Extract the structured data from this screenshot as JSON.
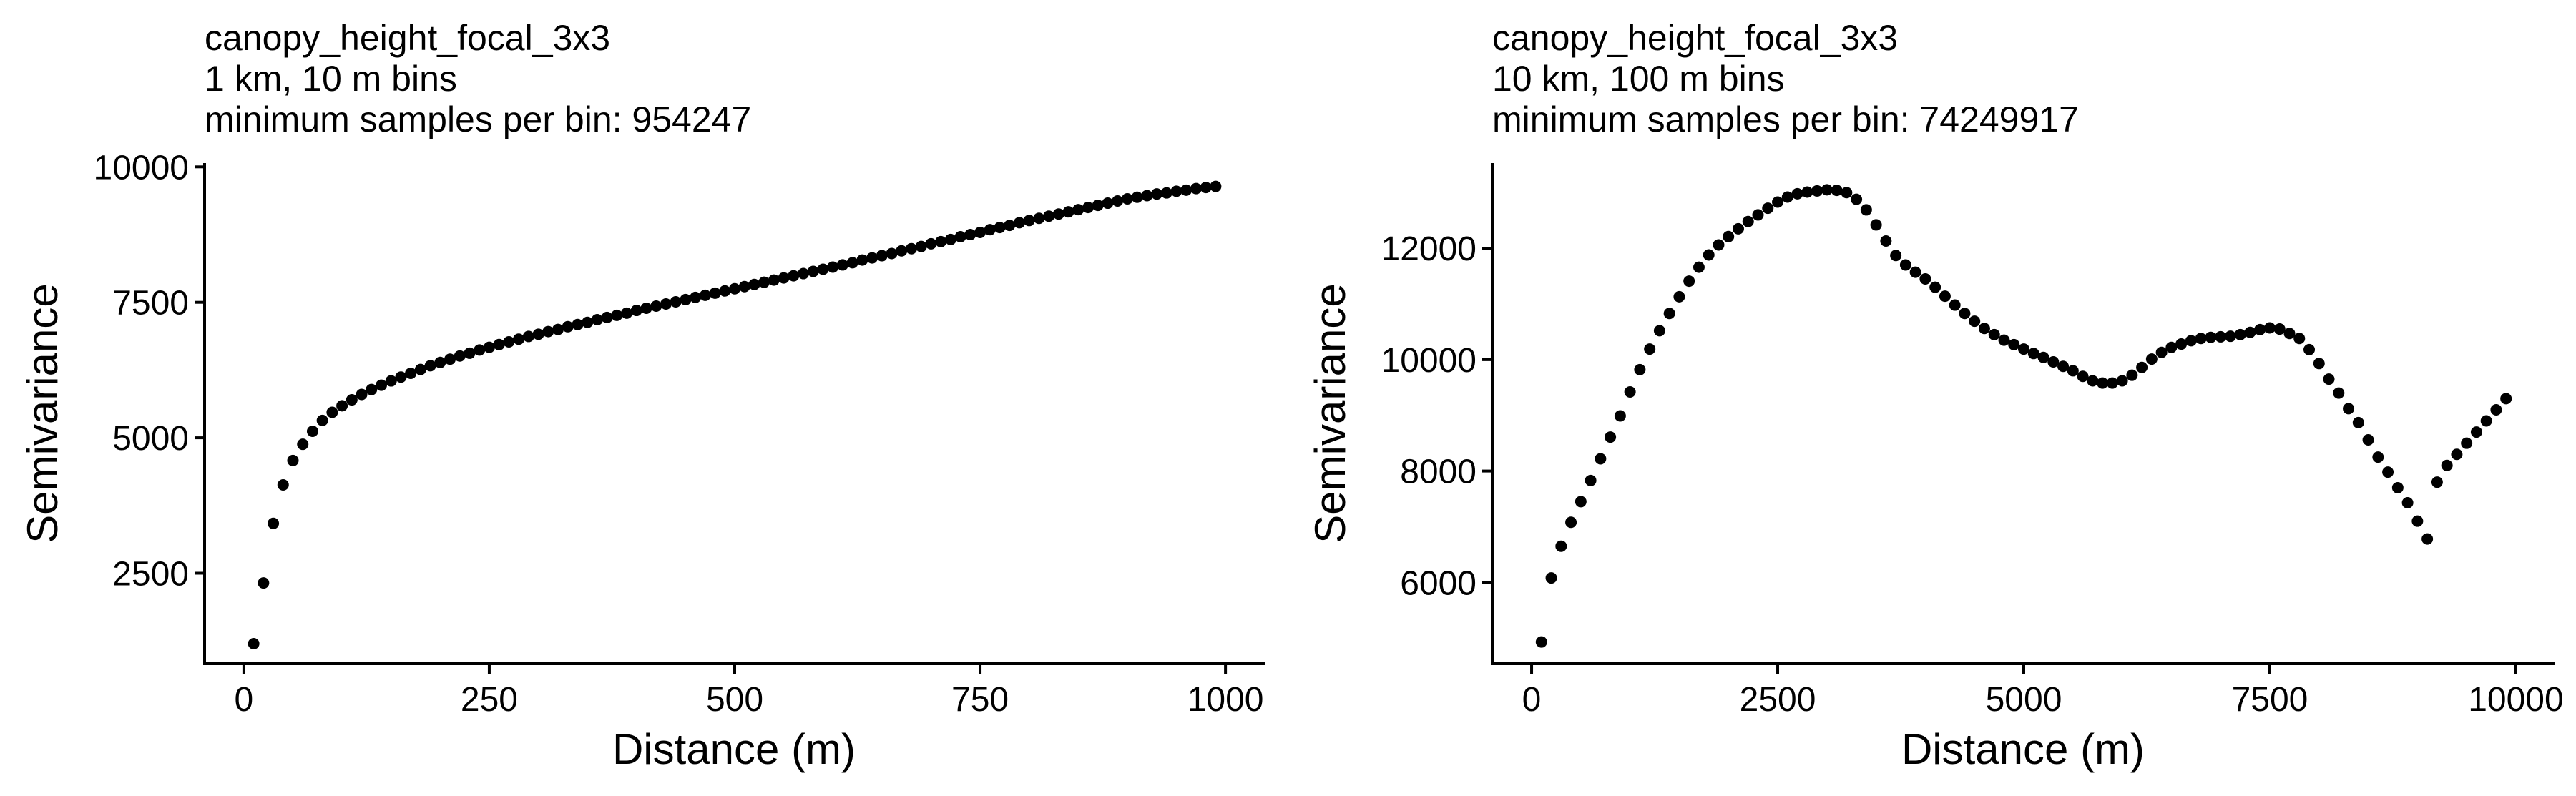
{
  "chart_data": [
    {
      "type": "scatter",
      "title_lines": [
        "canopy_height_focal_3x3",
        "1 km, 10 m bins",
        "minimum samples per bin: 954247"
      ],
      "xlabel": "Distance (m)",
      "ylabel": "Semivariance",
      "xlim": [
        -40,
        1040
      ],
      "ylim": [
        830,
        10070
      ],
      "x_ticks": [
        0,
        250,
        500,
        750,
        1000
      ],
      "x_tick_labels": [
        "0",
        "250",
        "500",
        "750",
        "1000"
      ],
      "y_ticks": [
        2500,
        5000,
        7500,
        10000
      ],
      "y_tick_labels": [
        "2500",
        "5000",
        "7500",
        "10000"
      ],
      "grid": false,
      "series": [
        {
          "name": "semivariance",
          "x": [
            10,
            20,
            30,
            40,
            50,
            60,
            70,
            80,
            90,
            100,
            110,
            120,
            130,
            140,
            150,
            160,
            170,
            180,
            190,
            200,
            210,
            220,
            230,
            240,
            250,
            260,
            270,
            280,
            290,
            300,
            310,
            320,
            330,
            340,
            350,
            360,
            370,
            380,
            390,
            400,
            410,
            420,
            430,
            440,
            450,
            460,
            470,
            480,
            490,
            500,
            510,
            520,
            530,
            540,
            550,
            560,
            570,
            580,
            590,
            600,
            610,
            620,
            630,
            640,
            650,
            660,
            670,
            680,
            690,
            700,
            710,
            720,
            730,
            740,
            750,
            760,
            770,
            780,
            790,
            800,
            810,
            820,
            830,
            840,
            850,
            860,
            870,
            880,
            890,
            900,
            910,
            920,
            930,
            940,
            950,
            960,
            970,
            980,
            990
          ],
          "y": [
            1200,
            2320,
            3420,
            4130,
            4580,
            4880,
            5120,
            5320,
            5470,
            5590,
            5700,
            5800,
            5890,
            5970,
            6050,
            6120,
            6190,
            6260,
            6330,
            6390,
            6450,
            6510,
            6560,
            6620,
            6670,
            6720,
            6770,
            6820,
            6870,
            6910,
            6960,
            7000,
            7050,
            7090,
            7130,
            7180,
            7220,
            7260,
            7300,
            7350,
            7390,
            7430,
            7470,
            7510,
            7550,
            7590,
            7630,
            7670,
            7710,
            7750,
            7790,
            7830,
            7870,
            7910,
            7950,
            7990,
            8030,
            8070,
            8110,
            8150,
            8190,
            8230,
            8280,
            8320,
            8360,
            8400,
            8450,
            8490,
            8530,
            8580,
            8620,
            8660,
            8710,
            8750,
            8790,
            8840,
            8880,
            8920,
            8970,
            9010,
            9050,
            9090,
            9130,
            9170,
            9210,
            9250,
            9290,
            9330,
            9370,
            9410,
            9440,
            9470,
            9500,
            9520,
            9550,
            9570,
            9600,
            9620,
            9640
          ]
        }
      ]
    },
    {
      "type": "scatter",
      "title_lines": [
        "canopy_height_focal_3x3",
        "10 km, 100 m bins",
        "minimum samples per bin: 74249917"
      ],
      "xlabel": "Distance (m)",
      "ylabel": "Semivariance",
      "xlim": [
        -400,
        10400
      ],
      "ylim": [
        4540,
        13530
      ],
      "x_ticks": [
        0,
        2500,
        5000,
        7500,
        10000
      ],
      "x_tick_labels": [
        "0",
        "2500",
        "5000",
        "7500",
        "10000"
      ],
      "y_ticks": [
        6000,
        8000,
        10000,
        12000
      ],
      "y_tick_labels": [
        "6000",
        "8000",
        "10000",
        "12000"
      ],
      "grid": false,
      "series": [
        {
          "name": "semivariance",
          "x": [
            100,
            200,
            300,
            400,
            500,
            600,
            700,
            800,
            900,
            1000,
            1100,
            1200,
            1300,
            1400,
            1500,
            1600,
            1700,
            1800,
            1900,
            2000,
            2100,
            2200,
            2300,
            2400,
            2500,
            2600,
            2700,
            2800,
            2900,
            3000,
            3100,
            3200,
            3300,
            3400,
            3500,
            3600,
            3700,
            3800,
            3900,
            4000,
            4100,
            4200,
            4300,
            4400,
            4500,
            4600,
            4700,
            4800,
            4900,
            5000,
            5100,
            5200,
            5300,
            5400,
            5500,
            5600,
            5700,
            5800,
            5900,
            6000,
            6100,
            6200,
            6300,
            6400,
            6500,
            6600,
            6700,
            6800,
            6900,
            7000,
            7100,
            7200,
            7300,
            7400,
            7500,
            7600,
            7700,
            7800,
            7900,
            8000,
            8100,
            8200,
            8300,
            8400,
            8500,
            8600,
            8700,
            8800,
            8900,
            9000,
            9100,
            9200,
            9300,
            9400,
            9500,
            9600,
            9700,
            9800,
            9900
          ],
          "y": [
            4930,
            6080,
            6650,
            7080,
            7450,
            7830,
            8220,
            8610,
            8990,
            9420,
            9820,
            10190,
            10520,
            10830,
            11130,
            11410,
            11660,
            11880,
            12060,
            12210,
            12350,
            12480,
            12600,
            12720,
            12830,
            12920,
            12980,
            13010,
            13030,
            13050,
            13040,
            13000,
            12880,
            12690,
            12420,
            12130,
            11870,
            11700,
            11570,
            11450,
            11300,
            11140,
            10980,
            10830,
            10690,
            10560,
            10450,
            10350,
            10270,
            10190,
            10110,
            10040,
            9960,
            9880,
            9800,
            9700,
            9620,
            9580,
            9580,
            9620,
            9720,
            9860,
            10010,
            10130,
            10220,
            10280,
            10340,
            10380,
            10400,
            10410,
            10420,
            10450,
            10490,
            10540,
            10570,
            10550,
            10470,
            10380,
            10180,
            9930,
            9650,
            9400,
            9120,
            8870,
            8560,
            8250,
            7980,
            7700,
            7430,
            7100,
            6780,
            7800,
            8100,
            8300,
            8500,
            8700,
            8900,
            9100,
            9300
          ]
        }
      ]
    }
  ]
}
